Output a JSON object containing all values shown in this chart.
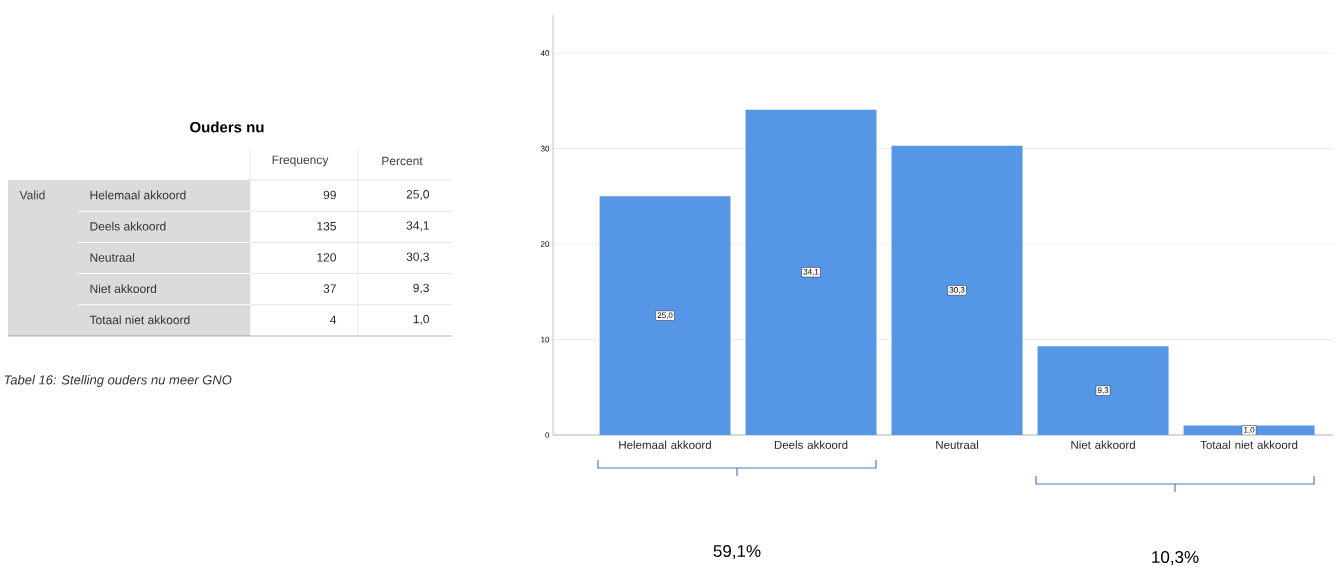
{
  "chart_data": [
    {
      "type": "other",
      "title": "Ouders nu",
      "ylabel": "Valid",
      "categories": [
        "Helemaal akkoord",
        "Deels akkoord",
        "Neutraal",
        "Niet akkoord",
        "Totaal niet akkoord"
      ],
      "series": [
        {
          "name": "Frequency",
          "values": [
            99,
            135,
            120,
            37,
            4
          ]
        },
        {
          "name": "Percent",
          "values": [
            25.0,
            34.1,
            30.3,
            9.3,
            1.0
          ],
          "value_labels": [
            "25,0",
            "34,1",
            "30,3",
            "9,3",
            "1,0"
          ]
        }
      ],
      "data_labels": true,
      "annotations": [
        "Tabel 16: Stelling ouders nu meer GNO"
      ]
    },
    {
      "type": "bar",
      "categories": [
        "Helemaal akkoord",
        "Deels akkoord",
        "Neutraal",
        "Niet akkoord",
        "Totaal niet akkoord"
      ],
      "values": [
        25.0,
        34.1,
        30.3,
        9.3,
        1.0
      ],
      "value_labels": [
        "25,0",
        "34,1",
        "30,3",
        "9,3",
        "1,0"
      ],
      "color": "#5596e6",
      "ylim": [
        0,
        44
      ],
      "yticks": [
        0,
        10,
        20,
        30,
        40
      ],
      "grid": "y",
      "annotations": [
        "59,1%",
        "10,3%"
      ]
    }
  ]
}
